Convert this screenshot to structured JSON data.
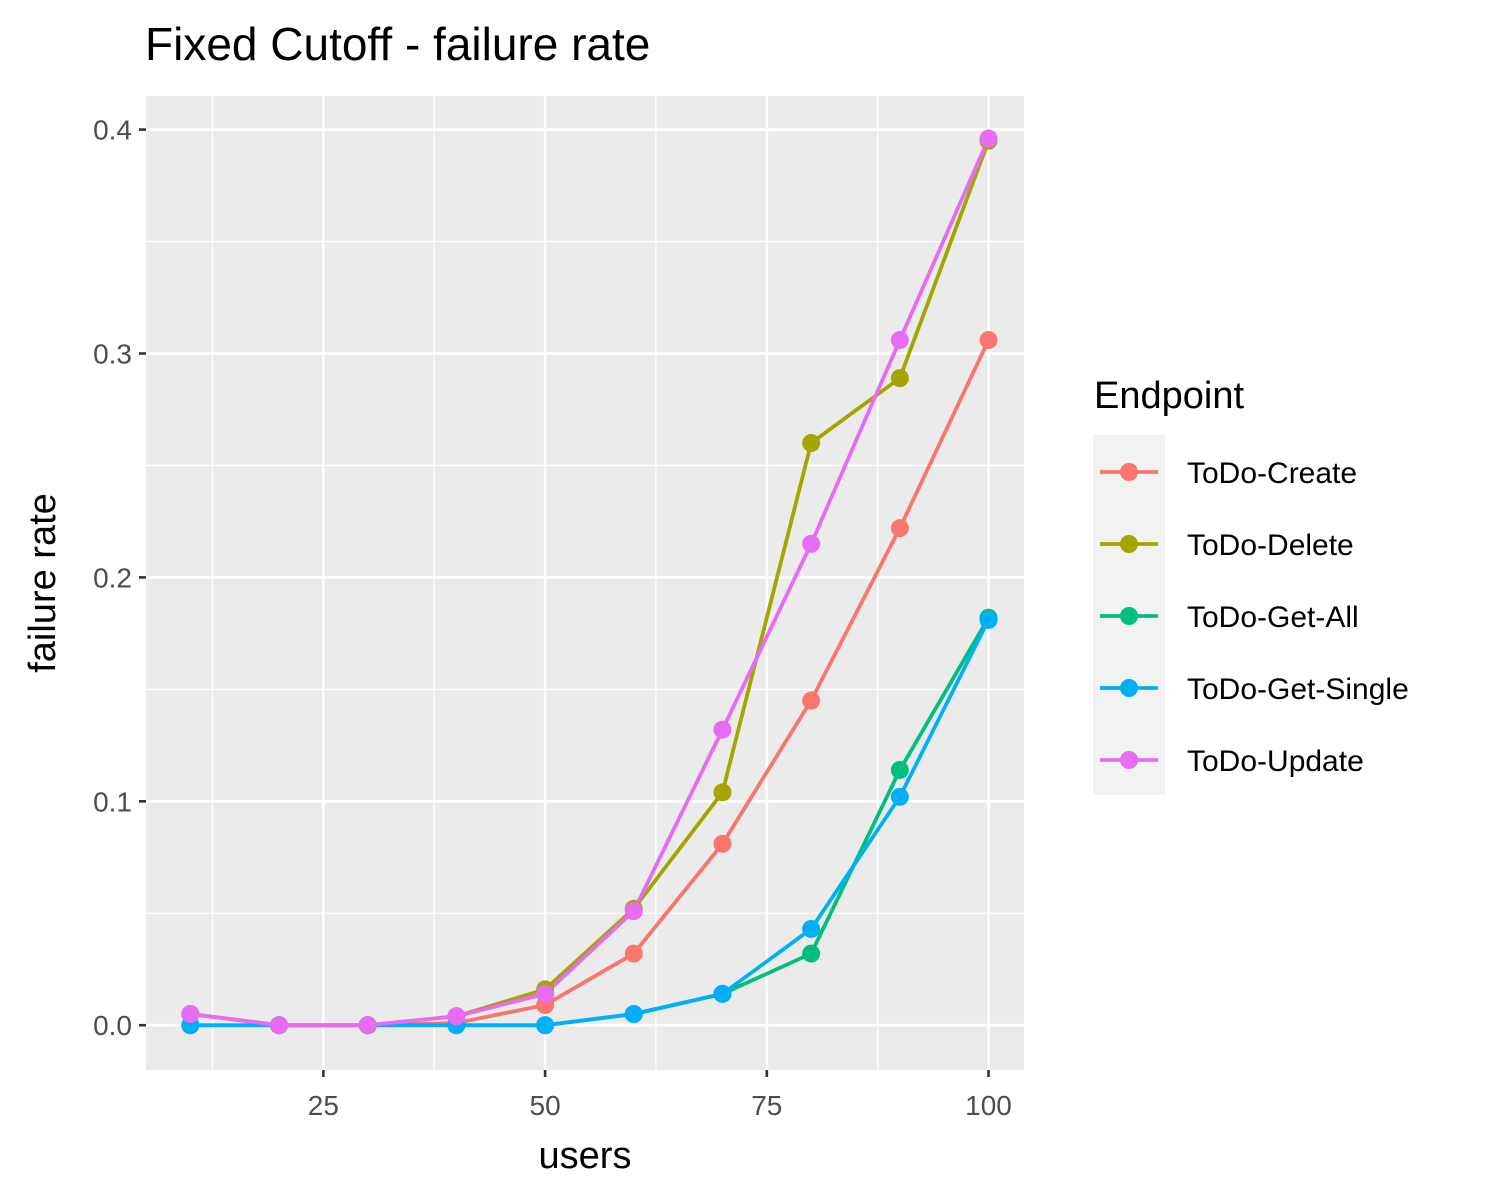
{
  "chart_data": {
    "type": "line",
    "title": "Fixed Cutoff - failure rate",
    "xlabel": "users",
    "ylabel": "failure rate",
    "xlim": [
      5,
      104
    ],
    "ylim": [
      -0.02,
      0.415
    ],
    "x_ticks": [
      {
        "value": 25,
        "label": "25"
      },
      {
        "value": 50,
        "label": "50"
      },
      {
        "value": 75,
        "label": "75"
      },
      {
        "value": 100,
        "label": "100"
      }
    ],
    "y_ticks": [
      {
        "value": 0.0,
        "label": "0.0"
      },
      {
        "value": 0.1,
        "label": "0.1"
      },
      {
        "value": 0.2,
        "label": "0.2"
      },
      {
        "value": 0.3,
        "label": "0.3"
      },
      {
        "value": 0.4,
        "label": "0.4"
      }
    ],
    "grid": true,
    "legend": {
      "title": "Endpoint",
      "position": "right"
    },
    "x": [
      10,
      20,
      30,
      40,
      50,
      60,
      70,
      80,
      90,
      100
    ],
    "series": [
      {
        "name": "ToDo-Create",
        "color": "#F8766D",
        "values": [
          0.005,
          0.0,
          0.0,
          0.001,
          0.009,
          0.032,
          0.081,
          0.145,
          0.222,
          0.306
        ]
      },
      {
        "name": "ToDo-Delete",
        "color": "#A3A500",
        "values": [
          0.005,
          0.0,
          0.0,
          0.004,
          0.016,
          0.052,
          0.104,
          0.26,
          0.289,
          0.395
        ]
      },
      {
        "name": "ToDo-Get-All",
        "color": "#00BF7D",
        "values": [
          0.0,
          0.0,
          0.0,
          0.0,
          0.0,
          0.005,
          0.014,
          0.032,
          0.114,
          0.182
        ]
      },
      {
        "name": "ToDo-Get-Single",
        "color": "#00B0F6",
        "values": [
          0.0,
          0.0,
          0.0,
          0.0,
          0.0,
          0.005,
          0.014,
          0.043,
          0.102,
          0.181
        ]
      },
      {
        "name": "ToDo-Update",
        "color": "#E76BF3",
        "values": [
          0.005,
          0.0,
          0.0,
          0.004,
          0.014,
          0.051,
          0.132,
          0.215,
          0.306,
          0.396
        ]
      }
    ]
  }
}
